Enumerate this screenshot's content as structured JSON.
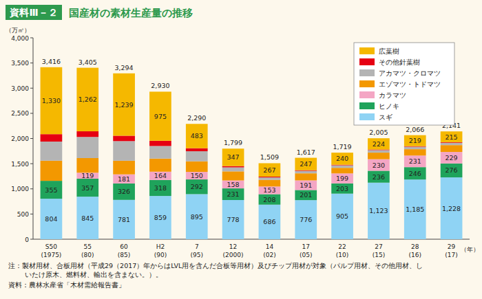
{
  "chart_data": {
    "type": "bar",
    "stacked": true,
    "data_labels": true,
    "grid": false,
    "legend": "top-right",
    "badge": "資料Ⅲ－２",
    "title": "国産材の素材生産量の推移",
    "y_label": "（万㎥）",
    "x_label": "（年）",
    "notes": [
      "注：製材用材、合板用材（平成29（2017）年からはLVL用を含んだ合板等用材）及びチップ用材が対象（パルプ用材、その他用材、し",
      "いたけ原木、燃料材、輸出を含まない。）。"
    ],
    "source": "資料：農林水産省「木材需給報告書」",
    "categories": [
      "S50\n(1975)",
      "55\n(80)",
      "60\n(85)",
      "H2\n(90)",
      "7\n(95)",
      "12\n(2000)",
      "14\n(02)",
      "17\n(05)",
      "22\n(10)",
      "27\n(15)",
      "28\n(16)",
      "29\n(17)"
    ],
    "ylim": [
      0,
      4000
    ],
    "yticks": [
      0,
      500,
      {
        "value": 1000,
        "label": "1,000"
      },
      {
        "value": 1500,
        "label": "1,500"
      },
      {
        "value": 2000,
        "label": "2,000"
      },
      {
        "value": 2500,
        "label": "2,500"
      },
      {
        "value": 3000,
        "label": "3,000"
      },
      {
        "value": 3500,
        "label": "3,500"
      },
      {
        "value": 4000,
        "label": "4,000"
      }
    ],
    "totals": [
      3416,
      3405,
      3294,
      2930,
      2290,
      1799,
      1509,
      1617,
      1719,
      2005,
      2066,
      2141
    ],
    "total_labels": [
      "3,416",
      "3,405",
      "3,294",
      "2,930",
      "2,290",
      "1,799",
      "1,509",
      "1,617",
      "1,719",
      "2,005",
      "2,066",
      "2,141"
    ],
    "series": [
      {
        "name": "スギ",
        "color": "#8fd3f4",
        "values": [
          804,
          845,
          781,
          859,
          895,
          778,
          686,
          776,
          905,
          1123,
          1185,
          1228
        ],
        "value_labels": [
          "804",
          "845",
          "781",
          "859",
          "895",
          "778",
          "686",
          "776",
          "905",
          "1,123",
          "1,185",
          "1,228"
        ]
      },
      {
        "name": "ヒノキ",
        "color": "#1fa35b",
        "values": [
          355,
          357,
          326,
          318,
          292,
          231,
          208,
          201,
          203,
          236,
          246,
          276
        ],
        "value_labels": [
          "355",
          "357",
          "326",
          "318",
          "292",
          "231",
          "208",
          "201",
          "203",
          "236",
          "246",
          "276"
        ]
      },
      {
        "name": "カラマツ",
        "color": "#f4a6c4",
        "values": [
          0,
          119,
          181,
          164,
          150,
          158,
          153,
          191,
          199,
          230,
          231,
          229
        ],
        "value_labels": [
          null,
          "119",
          "181",
          "164",
          "150",
          "158",
          "153",
          "191",
          "199",
          "230",
          "231",
          "229"
        ]
      },
      {
        "name": "エゾマツ・トドマツ",
        "color": "#f39800",
        "values": [
          400,
          290,
          270,
          260,
          210,
          180,
          130,
          140,
          110,
          130,
          125,
          135
        ],
        "value_labels": [
          null,
          null,
          null,
          null,
          null,
          null,
          null,
          null,
          null,
          null,
          null,
          null
        ]
      },
      {
        "name": "アカマツ・クロマツ",
        "color": "#b4b4b4",
        "values": [
          380,
          420,
          390,
          250,
          200,
          80,
          50,
          48,
          50,
          50,
          48,
          46
        ],
        "value_labels": [
          null,
          null,
          null,
          null,
          null,
          null,
          null,
          null,
          null,
          null,
          null,
          null
        ]
      },
      {
        "name": "その他針葉樹",
        "color": "#e60012",
        "values": [
          147,
          112,
          107,
          104,
          60,
          25,
          15,
          14,
          12,
          12,
          12,
          12
        ],
        "value_labels": [
          null,
          null,
          null,
          null,
          null,
          null,
          null,
          null,
          null,
          null,
          null,
          null
        ]
      },
      {
        "name": "広葉樹",
        "color": "#f5b800",
        "values": [
          1330,
          1262,
          1239,
          975,
          483,
          347,
          267,
          247,
          240,
          224,
          219,
          215
        ],
        "value_labels": [
          "1,330",
          "1,262",
          "1,239",
          "975",
          "483",
          "347",
          "267",
          "247",
          "240",
          "224",
          "219",
          "215"
        ]
      }
    ]
  }
}
